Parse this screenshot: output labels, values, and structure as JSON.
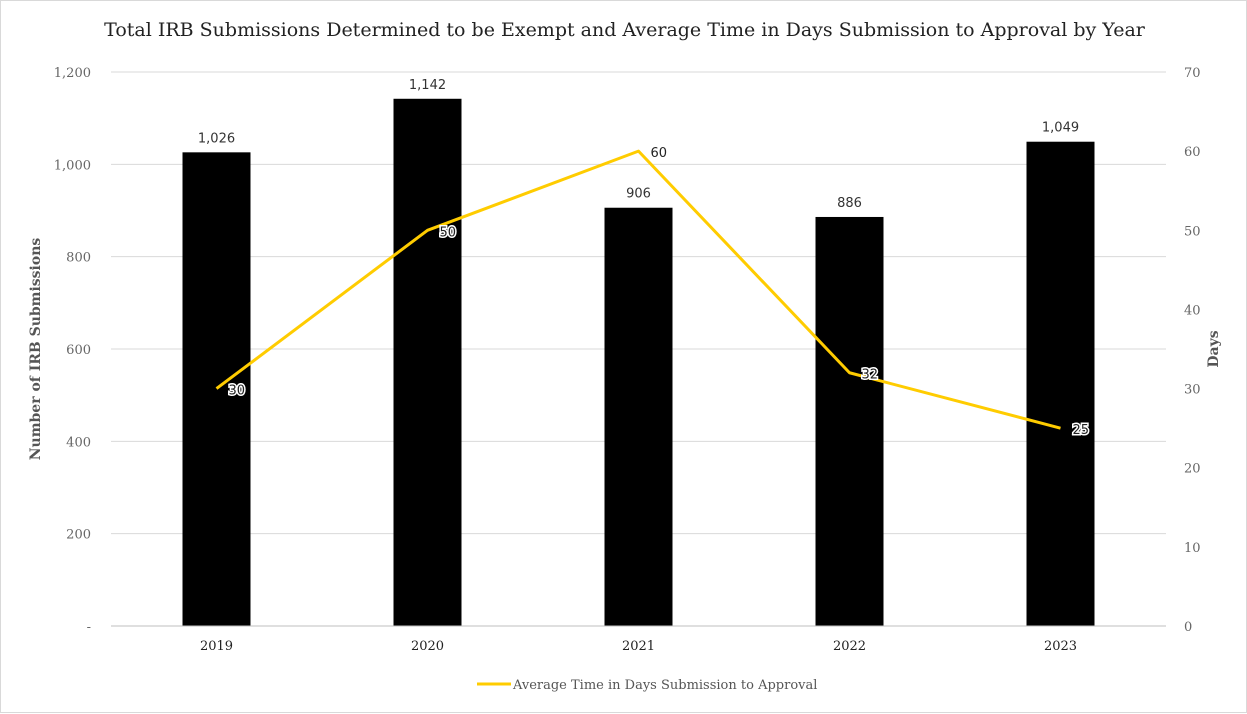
{
  "chart_data": {
    "type": "bar",
    "title": "Total IRB Submissions Determined to be Exempt and Average Time in Days Submission to Approval by Year",
    "categories": [
      "2019",
      "2020",
      "2021",
      "2022",
      "2023"
    ],
    "series": [
      {
        "values": [
          1026,
          1142,
          906,
          886,
          1049
        ],
        "value_labels": [
          "1,026",
          "1,142",
          "906",
          "886",
          "1,049"
        ],
        "color": "#000000"
      },
      {
        "name": "Average Time in Days Submission to Approval",
        "type": "line",
        "axis": "right",
        "values": [
          30,
          50,
          60,
          32,
          25
        ],
        "value_labels": [
          "30",
          "50",
          "60",
          "32",
          "25"
        ],
        "color": "#FFCC00"
      }
    ],
    "ylabel": "Number of IRB Submissions",
    "ylim": [
      0,
      1200
    ],
    "yticks": [
      0,
      200,
      400,
      600,
      800,
      1000,
      1200
    ],
    "ytick_labels": [
      "-",
      "200",
      "400",
      "600",
      "800",
      "1,000",
      "1,200"
    ],
    "y2label": "Days",
    "y2lim": [
      0,
      70
    ],
    "y2ticks": [
      0,
      10,
      20,
      30,
      40,
      50,
      60,
      70
    ],
    "y2tick_labels": [
      "0",
      "10",
      "20",
      "30",
      "40",
      "50",
      "60",
      "70"
    ],
    "grid": true,
    "legend": "bottom",
    "legend_entries": [
      "Average Time in Days Submission to Approval"
    ]
  }
}
